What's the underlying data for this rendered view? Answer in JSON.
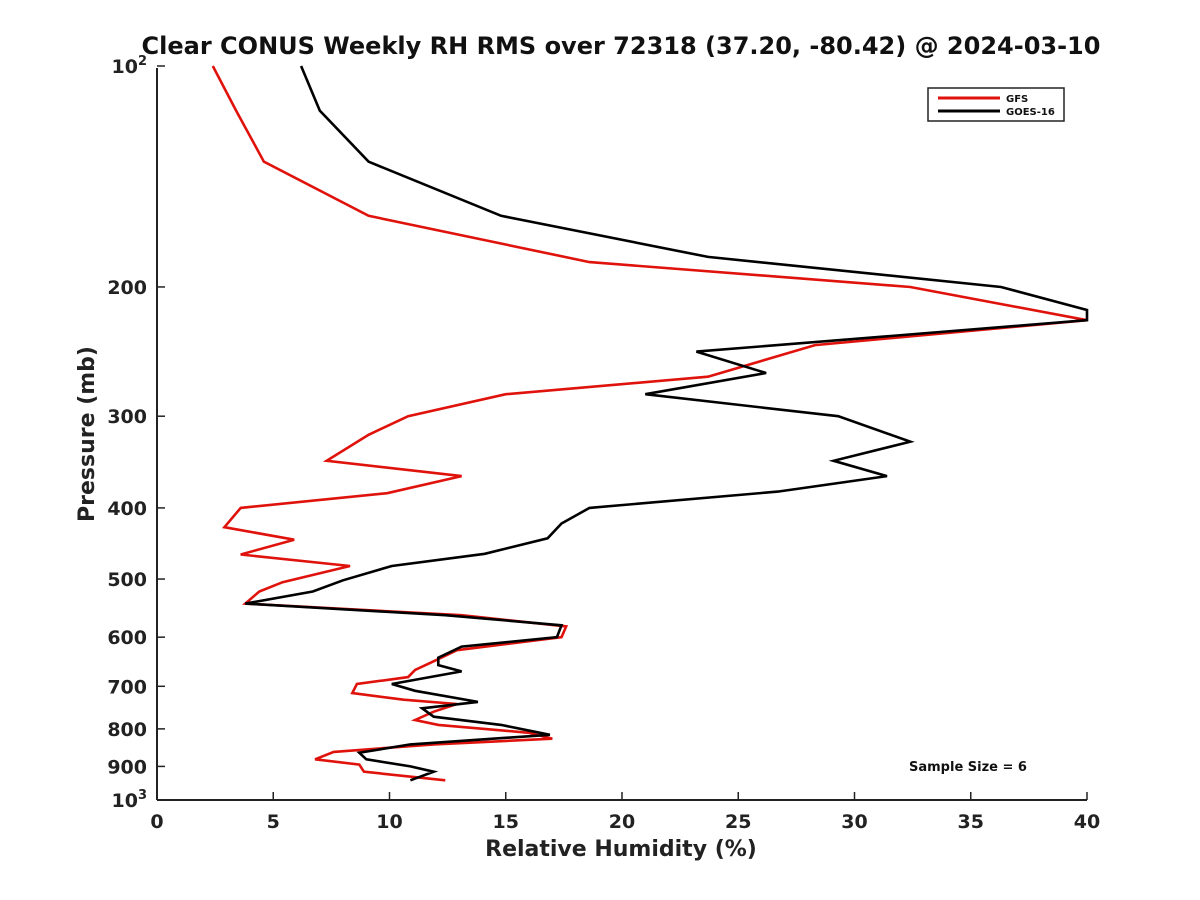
{
  "chart_data": {
    "type": "line",
    "title": "Clear CONUS Weekly RH RMS over 72318 (37.20, -80.42) @ 2024-03-10",
    "xlabel": "Relative Humidity (%)",
    "ylabel": "Pressure (mb)",
    "xlim": [
      0,
      40
    ],
    "ylim": [
      100,
      1000
    ],
    "y_scale": "log",
    "y_reversed": true,
    "x_ticks": [
      0,
      5,
      10,
      15,
      20,
      25,
      30,
      35,
      40
    ],
    "y_ticks": [
      {
        "value": 100,
        "label": "10",
        "sup": "2"
      },
      {
        "value": 200,
        "label": "200",
        "sup": ""
      },
      {
        "value": 300,
        "label": "300",
        "sup": ""
      },
      {
        "value": 400,
        "label": "400",
        "sup": ""
      },
      {
        "value": 500,
        "label": "500",
        "sup": ""
      },
      {
        "value": 600,
        "label": "600",
        "sup": ""
      },
      {
        "value": 700,
        "label": "700",
        "sup": ""
      },
      {
        "value": 800,
        "label": "800",
        "sup": ""
      },
      {
        "value": 900,
        "label": "900",
        "sup": ""
      },
      {
        "value": 1000,
        "label": "10",
        "sup": "3"
      }
    ],
    "grid": false,
    "legend_position": "top-right",
    "series": [
      {
        "name": "GFS",
        "color": "#e0120c",
        "points": [
          [
            2.4,
            100
          ],
          [
            3.4,
            115
          ],
          [
            4.6,
            135
          ],
          [
            9.1,
            160
          ],
          [
            18.6,
            185
          ],
          [
            32.4,
            200
          ],
          [
            40,
            222
          ],
          [
            28.3,
            240
          ],
          [
            23.7,
            265
          ],
          [
            15.0,
            280
          ],
          [
            10.8,
            300
          ],
          [
            9.1,
            318
          ],
          [
            7.3,
            345
          ],
          [
            13.1,
            362
          ],
          [
            9.9,
            382
          ],
          [
            3.6,
            400
          ],
          [
            2.9,
            425
          ],
          [
            5.9,
            442
          ],
          [
            3.6,
            463
          ],
          [
            8.3,
            480
          ],
          [
            5.4,
            505
          ],
          [
            4.4,
            520
          ],
          [
            3.8,
            540
          ],
          [
            13.1,
            560
          ],
          [
            17.6,
            580
          ],
          [
            17.4,
            600
          ],
          [
            12.9,
            625
          ],
          [
            12.0,
            645
          ],
          [
            11.1,
            665
          ],
          [
            10.8,
            680
          ],
          [
            8.6,
            695
          ],
          [
            8.4,
            715
          ],
          [
            10.6,
            730
          ],
          [
            12.9,
            740
          ],
          [
            11.9,
            758
          ],
          [
            11.1,
            778
          ],
          [
            12.1,
            790
          ],
          [
            16.0,
            810
          ],
          [
            17.0,
            825
          ],
          [
            11.9,
            840
          ],
          [
            7.6,
            860
          ],
          [
            6.8,
            880
          ],
          [
            8.7,
            895
          ],
          [
            8.9,
            915
          ],
          [
            12.4,
            940
          ]
        ]
      },
      {
        "name": "GOES-16",
        "color": "#000000",
        "points": [
          [
            6.2,
            100
          ],
          [
            7.0,
            115
          ],
          [
            9.1,
            135
          ],
          [
            14.8,
            160
          ],
          [
            23.7,
            182
          ],
          [
            36.3,
            200
          ],
          [
            40,
            215
          ],
          [
            40,
            222
          ],
          [
            23.2,
            245
          ],
          [
            26.2,
            262
          ],
          [
            21.0,
            280
          ],
          [
            29.3,
            300
          ],
          [
            32.4,
            325
          ],
          [
            29.1,
            345
          ],
          [
            31.4,
            362
          ],
          [
            26.7,
            380
          ],
          [
            18.6,
            400
          ],
          [
            17.4,
            420
          ],
          [
            16.8,
            440
          ],
          [
            14.1,
            462
          ],
          [
            10.1,
            480
          ],
          [
            8.0,
            502
          ],
          [
            6.7,
            520
          ],
          [
            3.8,
            540
          ],
          [
            12.4,
            560
          ],
          [
            17.4,
            578
          ],
          [
            17.2,
            600
          ],
          [
            13.1,
            618
          ],
          [
            12.1,
            640
          ],
          [
            12.1,
            655
          ],
          [
            13.1,
            668
          ],
          [
            10.1,
            695
          ],
          [
            11.1,
            710
          ],
          [
            13.8,
            735
          ],
          [
            11.4,
            750
          ],
          [
            11.9,
            770
          ],
          [
            14.8,
            790
          ],
          [
            16.9,
            815
          ],
          [
            10.9,
            840
          ],
          [
            8.7,
            862
          ],
          [
            9.0,
            880
          ],
          [
            10.9,
            900
          ],
          [
            11.9,
            915
          ],
          [
            10.9,
            940
          ]
        ]
      }
    ],
    "annotations": [
      "Sample Size = 6"
    ]
  }
}
